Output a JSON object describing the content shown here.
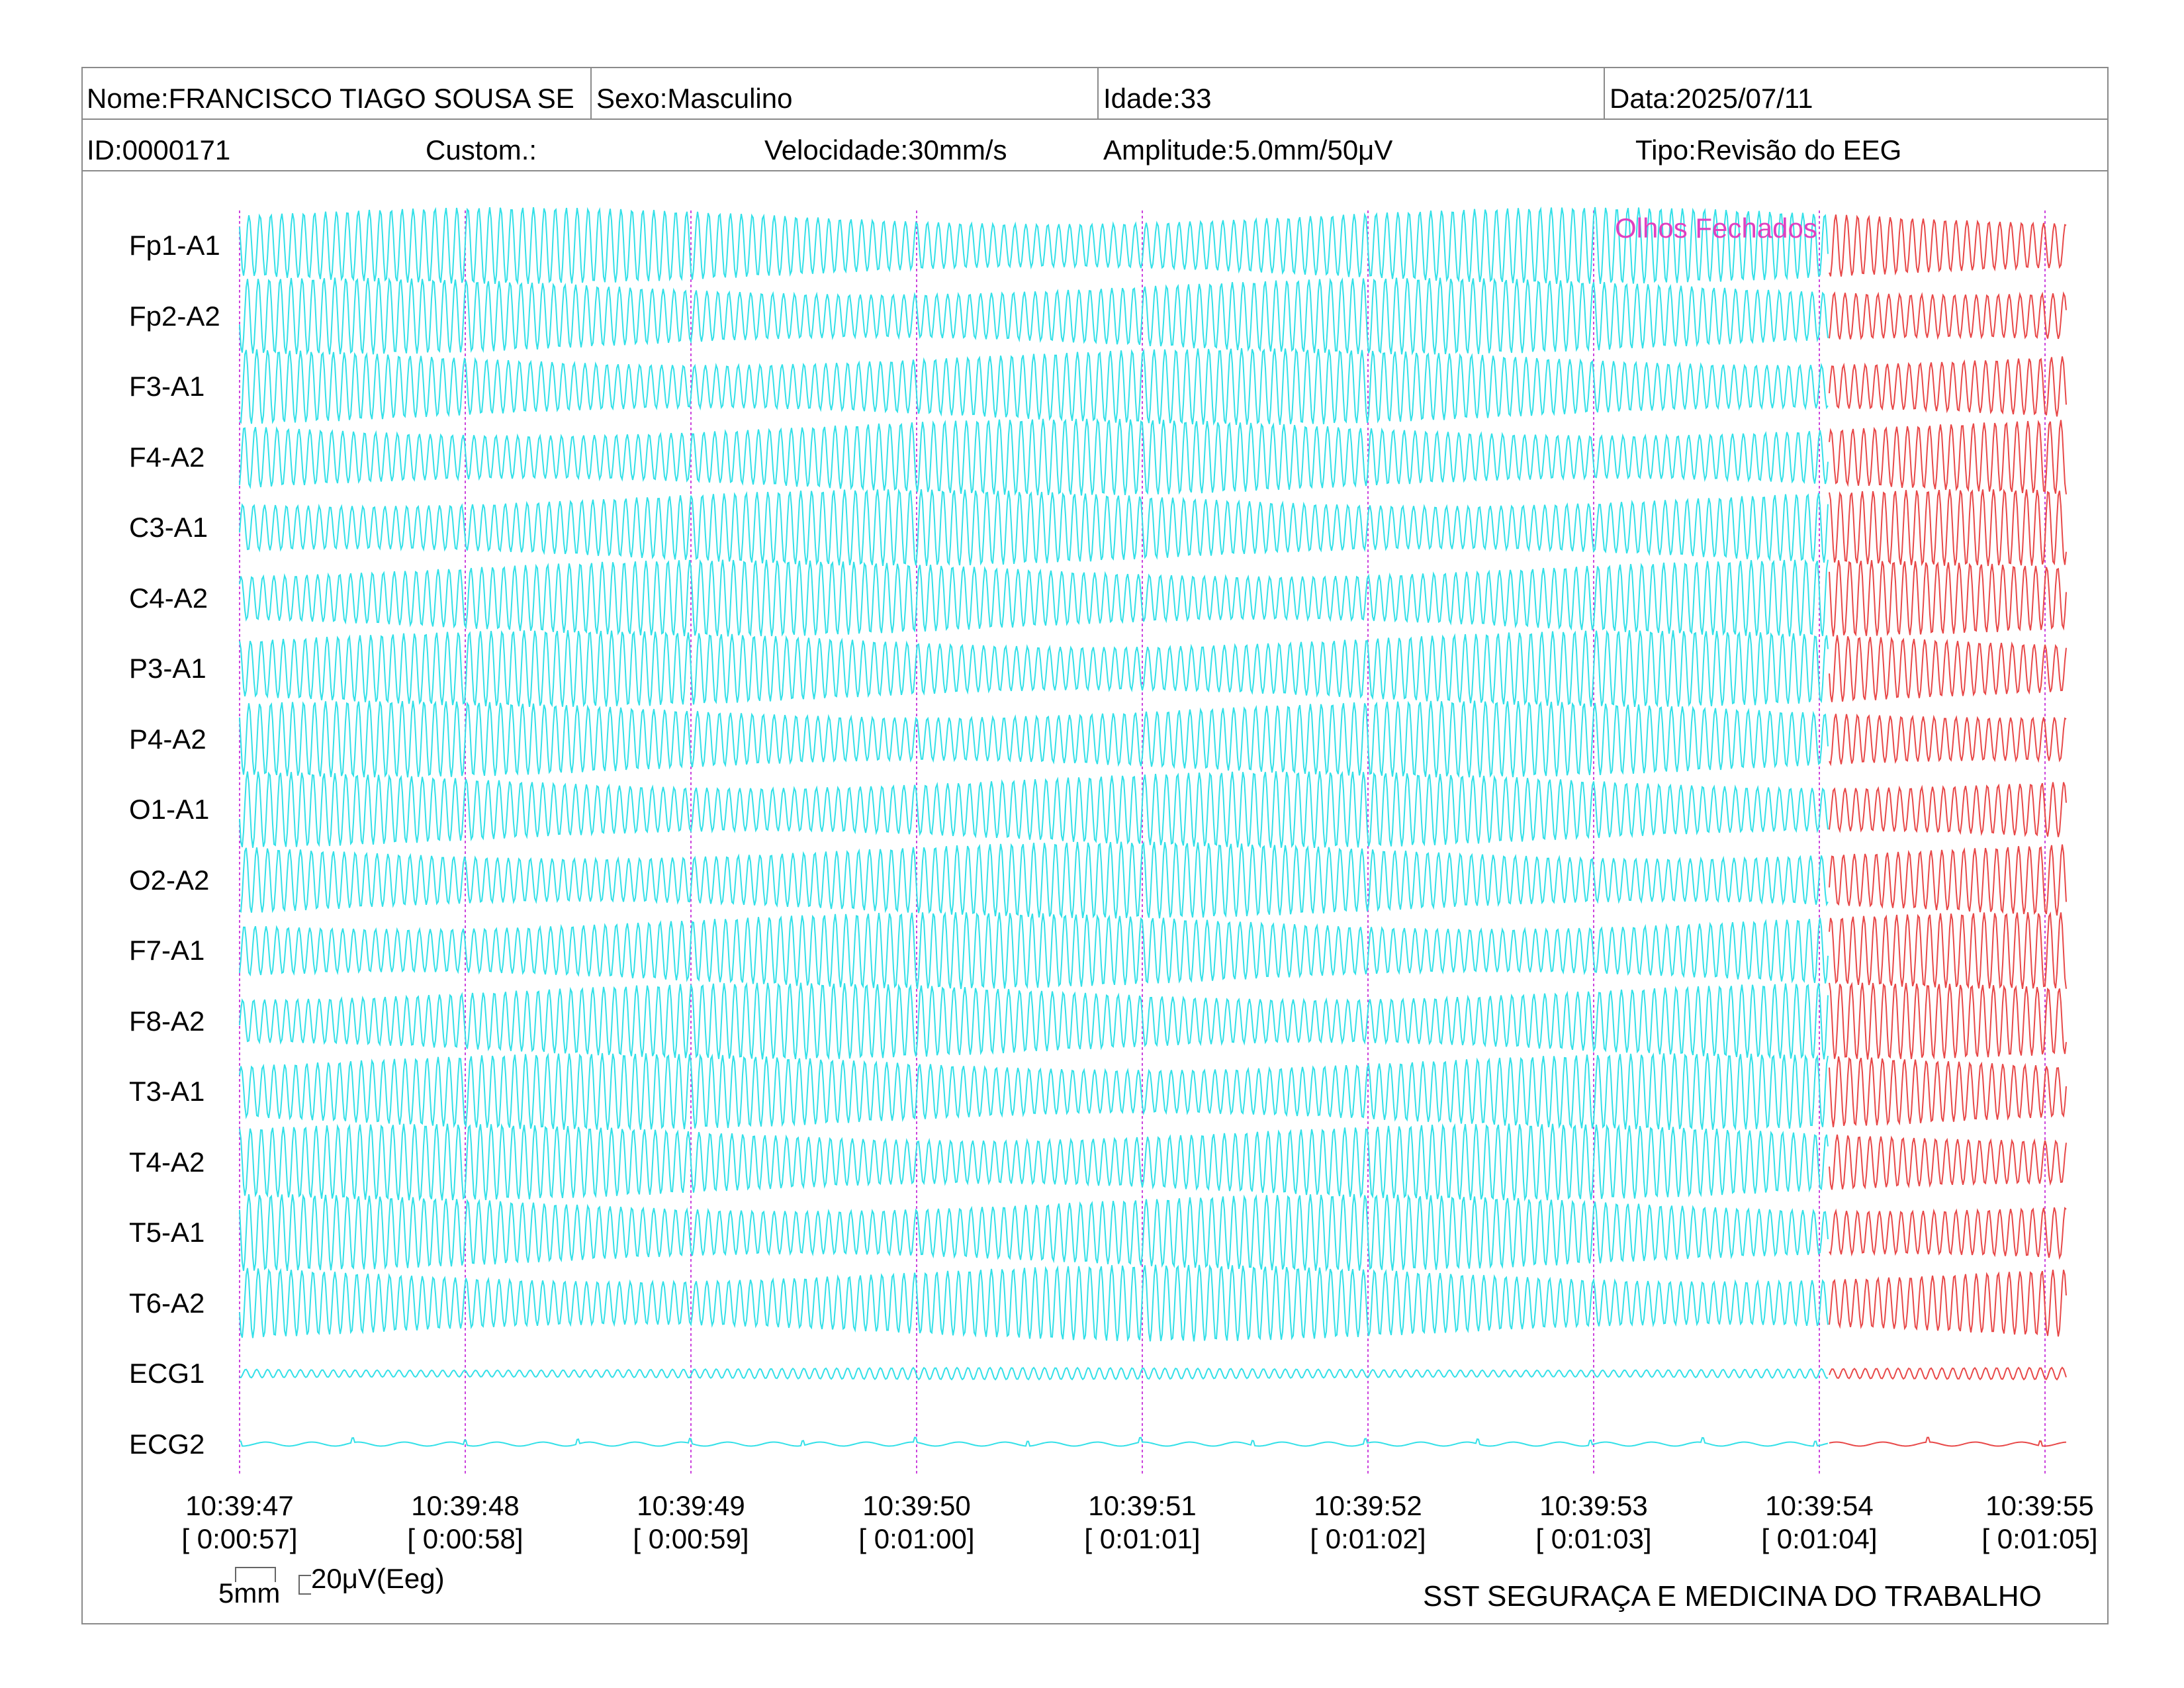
{
  "header": {
    "nome": "Nome:FRANCISCO TIAGO SOUSA SE",
    "sexo": "Sexo:Masculino",
    "idade": "Idade:33",
    "data": "Data:2025/07/11",
    "id": "ID:0000171",
    "custom": "Custom.:",
    "velocidade": "Velocidade:30mm/s",
    "amplitude": "Amplitude:5.0mm/50μV",
    "tipo": "Tipo:Revisão do EEG"
  },
  "channels": [
    "Fp1-A1",
    "Fp2-A2",
    "F3-A1",
    "F4-A2",
    "C3-A1",
    "C4-A2",
    "P3-A1",
    "P4-A2",
    "O1-A1",
    "O2-A2",
    "F7-A1",
    "F8-A2",
    "T3-A1",
    "T4-A2",
    "T5-A1",
    "T6-A2",
    "ECG1",
    "ECG2"
  ],
  "time_axis": [
    {
      "clock": "10:39:47",
      "elapsed": "[ 0:00:57]"
    },
    {
      "clock": "10:39:48",
      "elapsed": "[ 0:00:58]"
    },
    {
      "clock": "10:39:49",
      "elapsed": "[ 0:00:59]"
    },
    {
      "clock": "10:39:50",
      "elapsed": "[ 0:01:00]"
    },
    {
      "clock": "10:39:51",
      "elapsed": "[ 0:01:01]"
    },
    {
      "clock": "10:39:52",
      "elapsed": "[ 0:01:02]"
    },
    {
      "clock": "10:39:53",
      "elapsed": "[ 0:01:03]"
    },
    {
      "clock": "10:39:54",
      "elapsed": "[ 0:01:04]"
    },
    {
      "clock": "10:39:55",
      "elapsed": "[ 0:01:05]"
    }
  ],
  "annotation": "Olhos Fechados",
  "scale": {
    "time": "5mm",
    "amplitude": "20μV(Eeg)"
  },
  "footer": "SST SEGURAÇA E MEDICINA DO TRABALHO",
  "colors": {
    "trace": "#33e0e8",
    "trace_marked": "#e84848",
    "second_marker": "#cc44dd",
    "annotation": "#e040c0",
    "border": "#8a8a8a"
  }
}
